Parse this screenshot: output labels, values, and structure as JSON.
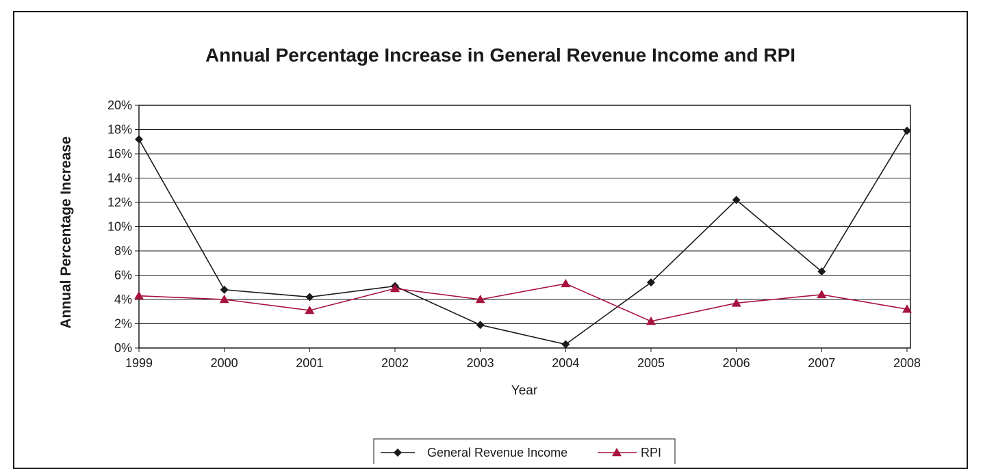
{
  "chart_data": {
    "type": "line",
    "title": "Annual Percentage Increase in General Revenue Income and RPI",
    "xlabel": "Year",
    "ylabel": "Annual Percentage Increase",
    "categories": [
      "1999",
      "2000",
      "2001",
      "2002",
      "2003",
      "2004",
      "2005",
      "2006",
      "2007",
      "2008"
    ],
    "y_ticks": [
      "0%",
      "2%",
      "4%",
      "6%",
      "8%",
      "10%",
      "12%",
      "14%",
      "16%",
      "18%",
      "20%"
    ],
    "ylim": [
      0,
      20
    ],
    "grid": true,
    "legend_position": "bottom-center",
    "series": [
      {
        "name": "General Revenue Income",
        "marker": "diamond",
        "color": "#1a1a1a",
        "values": [
          17.2,
          4.8,
          4.2,
          5.1,
          1.9,
          0.3,
          5.4,
          12.2,
          6.3,
          17.9
        ]
      },
      {
        "name": "RPI",
        "marker": "triangle",
        "color": "#a8123e",
        "values": [
          4.3,
          4.0,
          3.1,
          4.9,
          4.0,
          5.3,
          2.2,
          3.7,
          4.4,
          3.2
        ]
      }
    ]
  }
}
